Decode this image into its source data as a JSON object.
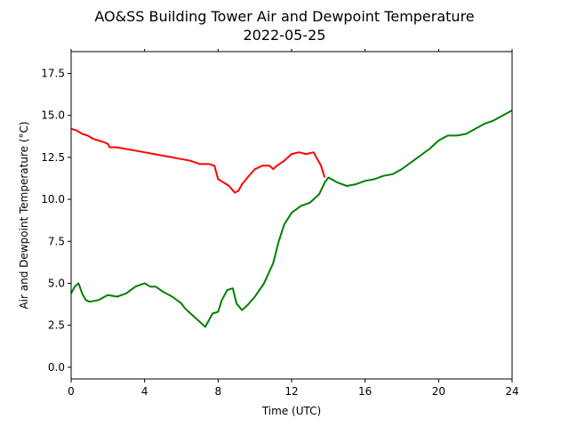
{
  "chart_data": {
    "type": "line",
    "title": "AO&SS Building Tower Air and Dewpoint Temperature",
    "subtitle": "2022-05-25",
    "xlabel": "Time (UTC)",
    "ylabel": "Air and Dewpoint Temperature (°C)",
    "xlim": [
      0,
      24
    ],
    "ylim": [
      -0.7,
      18.8
    ],
    "xticks": [
      0,
      4,
      8,
      12,
      16,
      20,
      24
    ],
    "yticks": [
      0.0,
      2.5,
      5.0,
      7.5,
      10.0,
      12.5,
      15.0,
      17.5
    ],
    "ytick_labels": [
      "0.0",
      "2.5",
      "5.0",
      "7.5",
      "10.0",
      "12.5",
      "15.0",
      "17.5"
    ],
    "grid": false,
    "series": [
      {
        "color": "#ff0000",
        "x": [
          0.0,
          0.3,
          0.6,
          0.9,
          1.2,
          1.5,
          1.8,
          2.0,
          2.1,
          2.5,
          3.0,
          3.5,
          4.0,
          4.5,
          5.0,
          5.5,
          6.0,
          6.5,
          7.0,
          7.5,
          7.8,
          8.0,
          8.3,
          8.6,
          8.9,
          9.1,
          9.3,
          9.6,
          10.0,
          10.4,
          10.8,
          11.0,
          11.2,
          11.6,
          12.0,
          12.4,
          12.8,
          13.2,
          13.4,
          13.6,
          13.8
        ],
        "y": [
          14.2,
          14.1,
          13.9,
          13.8,
          13.6,
          13.5,
          13.4,
          13.3,
          13.1,
          13.1,
          13.0,
          12.9,
          12.8,
          12.7,
          12.6,
          12.5,
          12.4,
          12.3,
          12.1,
          12.1,
          12.0,
          11.2,
          11.0,
          10.8,
          10.4,
          10.5,
          10.9,
          11.3,
          11.8,
          12.0,
          12.0,
          11.8,
          12.0,
          12.3,
          12.7,
          12.8,
          12.7,
          12.8,
          12.4,
          12.0,
          11.3
        ]
      },
      {
        "color": "#008000",
        "x": [
          0.0,
          0.2,
          0.4,
          0.6,
          0.8,
          1.0,
          1.5,
          2.0,
          2.5,
          3.0,
          3.5,
          4.0,
          4.3,
          4.6,
          5.0,
          5.5,
          6.0,
          6.2,
          6.5,
          7.0,
          7.3,
          7.5,
          7.7,
          8.0,
          8.2,
          8.5,
          8.8,
          9.0,
          9.3,
          9.6,
          10.0,
          10.5,
          11.0,
          11.3,
          11.6,
          12.0,
          12.5,
          13.0,
          13.5,
          13.8,
          14.0,
          14.5,
          15.0,
          15.5,
          16.0,
          16.5,
          17.0,
          17.5,
          18.0,
          18.5,
          19.0,
          19.5,
          20.0,
          20.5,
          21.0,
          21.5,
          22.0,
          22.5,
          23.0,
          23.5,
          24.0
        ],
        "y": [
          4.4,
          4.8,
          5.0,
          4.4,
          4.0,
          3.9,
          4.0,
          4.3,
          4.2,
          4.4,
          4.8,
          5.0,
          4.8,
          4.8,
          4.5,
          4.2,
          3.8,
          3.5,
          3.2,
          2.7,
          2.4,
          2.8,
          3.2,
          3.3,
          4.0,
          4.6,
          4.7,
          3.8,
          3.4,
          3.7,
          4.2,
          5.0,
          6.2,
          7.5,
          8.5,
          9.2,
          9.6,
          9.8,
          10.3,
          11.0,
          11.3,
          11.0,
          10.8,
          10.9,
          11.1,
          11.2,
          11.4,
          11.5,
          11.8,
          12.2,
          12.6,
          13.0,
          13.5,
          13.8,
          13.8,
          13.9,
          14.2,
          14.5,
          14.7,
          15.0,
          15.3
        ]
      }
    ]
  }
}
